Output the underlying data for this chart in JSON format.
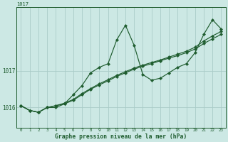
{
  "title": "1017",
  "xlabel": "Graphe pression niveau de la mer (hPa)",
  "background_color": "#cce8e4",
  "grid_color": "#aaccc8",
  "line_color": "#1e5c2e",
  "x_hours": [
    0,
    1,
    2,
    3,
    4,
    5,
    6,
    7,
    8,
    9,
    10,
    11,
    12,
    13,
    14,
    15,
    16,
    17,
    18,
    19,
    20,
    21,
    22,
    23
  ],
  "line_main": [
    1016.05,
    1015.92,
    1015.87,
    1016.0,
    1016.0,
    1016.1,
    1016.35,
    1016.6,
    1016.95,
    1017.1,
    1017.2,
    1017.85,
    1018.25,
    1017.7,
    1016.9,
    1016.75,
    1016.8,
    1016.95,
    1017.1,
    1017.2,
    1017.5,
    1018.0,
    1018.4,
    1018.15
  ],
  "line_low1": [
    1016.05,
    1015.92,
    1015.87,
    1016.0,
    1016.05,
    1016.1,
    1016.2,
    1016.35,
    1016.5,
    1016.62,
    1016.73,
    1016.85,
    1016.95,
    1017.05,
    1017.13,
    1017.2,
    1017.28,
    1017.35,
    1017.42,
    1017.5,
    1017.6,
    1017.75,
    1017.88,
    1018.0
  ],
  "line_low2": [
    1016.05,
    1015.92,
    1015.87,
    1016.0,
    1016.05,
    1016.12,
    1016.22,
    1016.38,
    1016.52,
    1016.65,
    1016.76,
    1016.88,
    1016.98,
    1017.08,
    1017.16,
    1017.23,
    1017.3,
    1017.38,
    1017.46,
    1017.54,
    1017.65,
    1017.82,
    1017.96,
    1018.08
  ],
  "ylim_min": 1015.45,
  "ylim_max": 1018.75,
  "yticks": [
    1016,
    1017
  ],
  "xlim_min": -0.5,
  "xlim_max": 23.5
}
